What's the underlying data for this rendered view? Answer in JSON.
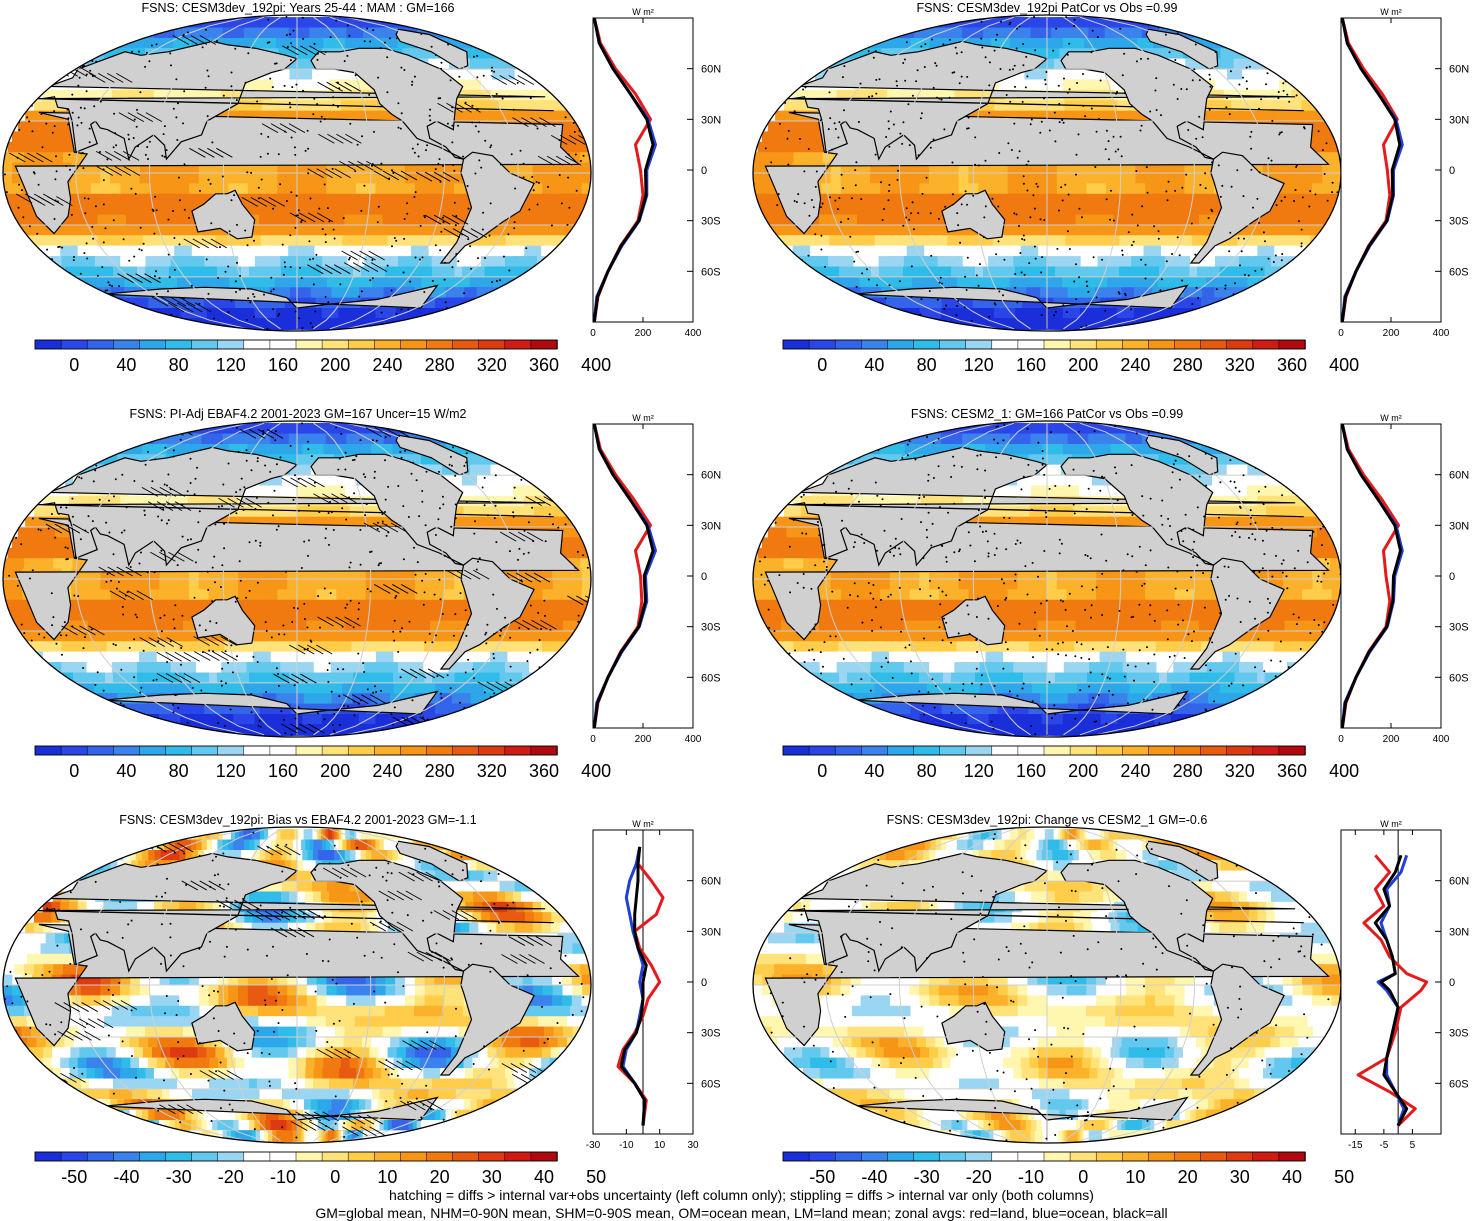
{
  "panels": [
    {
      "id": "p1",
      "title": "FSNS: CESM3dev_192pi: Years 25-44 : MAM : GM=166",
      "kind": "abs",
      "hatch": true
    },
    {
      "id": "p2",
      "title": "FSNS: CESM3dev_192pi PatCor vs Obs =0.99",
      "kind": "abs",
      "hatch": false
    },
    {
      "id": "p3",
      "title": "FSNS: PI-Adj EBAF4.2 2001-2023 GM=167 Uncer=15 W/m2",
      "kind": "abs",
      "hatch": true
    },
    {
      "id": "p4",
      "title": "FSNS: CESM2_1: GM=166 PatCor vs Obs =0.99",
      "kind": "abs",
      "hatch": false
    },
    {
      "id": "p5",
      "title": "FSNS: CESM3dev_192pi: Bias vs EBAF4.2 2001-2023 GM=-1.1",
      "kind": "diff",
      "hatch": true
    },
    {
      "id": "p6",
      "title": "FSNS: CESM3dev_192pi: Change vs CESM2_1 GM=-0.6",
      "kind": "diff",
      "hatch": false
    }
  ],
  "chart_data": [
    {
      "type": "heatmap",
      "title": "FSNS: CESM3dev_192pi: Years 25-44 : MAM : GM=166",
      "colorbar_ticks": [
        "0",
        "40",
        "80",
        "120",
        "160",
        "200",
        "240",
        "280",
        "320",
        "360",
        "400"
      ],
      "colorbar_range": [
        0,
        400
      ],
      "zonal_profile": {
        "unit": "W m²",
        "xticks": [
          "0",
          "200",
          "400"
        ],
        "xlim": [
          0,
          400
        ],
        "yticks": [
          "60N",
          "30N",
          "0",
          "30S",
          "60S"
        ],
        "ylim": [
          -90,
          90
        ],
        "series": [
          {
            "color": "#e41a1c",
            "lat": [
              -90,
              -75,
              -60,
              -45,
              -30,
              -15,
              0,
              15,
              30,
              45,
              60,
              75,
              90
            ],
            "values": [
              5,
              20,
              60,
              110,
              180,
              200,
              190,
              170,
              230,
              170,
              90,
              30,
              5
            ]
          },
          {
            "color": "#1f3fd6",
            "lat": [
              -90,
              -75,
              -60,
              -45,
              -30,
              -15,
              0,
              15,
              30,
              45,
              60,
              75,
              90
            ],
            "values": [
              5,
              15,
              60,
              115,
              185,
              215,
              215,
              250,
              220,
              150,
              80,
              25,
              5
            ]
          },
          {
            "color": "#000000",
            "lat": [
              -90,
              -75,
              -60,
              -45,
              -30,
              -15,
              0,
              15,
              30,
              45,
              60,
              75,
              90
            ],
            "values": [
              5,
              18,
              60,
              112,
              183,
              212,
              210,
              240,
              215,
              150,
              80,
              25,
              5
            ]
          }
        ]
      }
    },
    {
      "type": "heatmap",
      "title": "FSNS: CESM3dev_192pi PatCor vs Obs =0.99",
      "colorbar_ticks": [
        "0",
        "40",
        "80",
        "120",
        "160",
        "200",
        "240",
        "280",
        "320",
        "360",
        "400"
      ],
      "colorbar_range": [
        0,
        400
      ],
      "zonal_profile": {
        "unit": "W m²",
        "xticks": [
          "0",
          "200",
          "400"
        ],
        "xlim": [
          0,
          400
        ],
        "yticks": [
          "60N",
          "30N",
          "0",
          "30S",
          "60S"
        ],
        "ylim": [
          -90,
          90
        ],
        "series": [
          {
            "color": "#e41a1c",
            "lat": [
              -90,
              -75,
              -60,
              -45,
              -30,
              -15,
              0,
              15,
              30,
              45,
              60,
              75,
              90
            ],
            "values": [
              5,
              20,
              60,
              110,
              180,
              195,
              185,
              170,
              225,
              165,
              90,
              30,
              5
            ]
          },
          {
            "color": "#1f3fd6",
            "lat": [
              -90,
              -75,
              -60,
              -45,
              -30,
              -15,
              0,
              15,
              30,
              45,
              60,
              75,
              90
            ],
            "values": [
              5,
              15,
              60,
              115,
              185,
              210,
              210,
              245,
              220,
              150,
              80,
              25,
              5
            ]
          },
          {
            "color": "#000000",
            "lat": [
              -90,
              -75,
              -60,
              -45,
              -30,
              -15,
              0,
              15,
              30,
              45,
              60,
              75,
              90
            ],
            "values": [
              5,
              18,
              60,
              112,
              183,
              207,
              205,
              235,
              215,
              150,
              80,
              25,
              5
            ]
          }
        ]
      }
    },
    {
      "type": "heatmap",
      "title": "FSNS: PI-Adj EBAF4.2 2001-2023 GM=167 Uncer=15 W/m2",
      "colorbar_ticks": [
        "0",
        "40",
        "80",
        "120",
        "160",
        "200",
        "240",
        "280",
        "320",
        "360",
        "400"
      ],
      "colorbar_range": [
        0,
        400
      ],
      "zonal_profile": {
        "unit": "W m²",
        "xticks": [
          "0",
          "200",
          "400"
        ],
        "xlim": [
          0,
          400
        ],
        "yticks": [
          "60N",
          "30N",
          "0",
          "30S",
          "60S"
        ],
        "ylim": [
          -90,
          90
        ],
        "series": [
          {
            "color": "#e41a1c",
            "lat": [
              -90,
              -75,
              -60,
              -45,
              -30,
              -15,
              0,
              15,
              30,
              45,
              60,
              75,
              90
            ],
            "values": [
              5,
              20,
              60,
              110,
              180,
              195,
              190,
              170,
              230,
              165,
              90,
              30,
              5
            ]
          },
          {
            "color": "#1f3fd6",
            "lat": [
              -90,
              -75,
              -60,
              -45,
              -30,
              -15,
              0,
              15,
              30,
              45,
              60,
              75,
              90
            ],
            "values": [
              5,
              15,
              60,
              115,
              185,
              215,
              210,
              250,
              220,
              150,
              80,
              25,
              5
            ]
          },
          {
            "color": "#000000",
            "lat": [
              -90,
              -75,
              -60,
              -45,
              -30,
              -15,
              0,
              15,
              30,
              45,
              60,
              75,
              90
            ],
            "values": [
              5,
              18,
              60,
              112,
              183,
              210,
              205,
              240,
              215,
              150,
              80,
              25,
              5
            ]
          }
        ]
      }
    },
    {
      "type": "heatmap",
      "title": "FSNS: CESM2_1: GM=166 PatCor vs Obs =0.99",
      "colorbar_ticks": [
        "0",
        "40",
        "80",
        "120",
        "160",
        "200",
        "240",
        "280",
        "320",
        "360",
        "400"
      ],
      "colorbar_range": [
        0,
        400
      ],
      "zonal_profile": {
        "unit": "W m²",
        "xticks": [
          "0",
          "200",
          "400"
        ],
        "xlim": [
          0,
          400
        ],
        "yticks": [
          "60N",
          "30N",
          "0",
          "30S",
          "60S"
        ],
        "ylim": [
          -90,
          90
        ],
        "series": [
          {
            "color": "#e41a1c",
            "lat": [
              -90,
              -75,
              -60,
              -45,
              -30,
              -15,
              0,
              15,
              30,
              45,
              60,
              75,
              90
            ],
            "values": [
              5,
              20,
              60,
              110,
              180,
              195,
              180,
              170,
              230,
              165,
              90,
              30,
              5
            ]
          },
          {
            "color": "#1f3fd6",
            "lat": [
              -90,
              -75,
              -60,
              -45,
              -30,
              -15,
              0,
              15,
              30,
              45,
              60,
              75,
              90
            ],
            "values": [
              5,
              15,
              60,
              115,
              185,
              210,
              215,
              245,
              220,
              150,
              80,
              25,
              5
            ]
          },
          {
            "color": "#000000",
            "lat": [
              -90,
              -75,
              -60,
              -45,
              -30,
              -15,
              0,
              15,
              30,
              45,
              60,
              75,
              90
            ],
            "values": [
              5,
              18,
              60,
              112,
              183,
              207,
              210,
              238,
              215,
              150,
              80,
              25,
              5
            ]
          }
        ]
      }
    },
    {
      "type": "heatmap",
      "title": "FSNS: CESM3dev_192pi: Bias vs EBAF4.2 2001-2023 GM=-1.1",
      "colorbar_ticks": [
        "-50",
        "-40",
        "-30",
        "-20",
        "-10",
        "0",
        "10",
        "20",
        "30",
        "40",
        "50"
      ],
      "colorbar_range": [
        -55,
        55
      ],
      "zonal_profile": {
        "unit": "W m²",
        "xticks": [
          "-30",
          "-10",
          "10",
          "30"
        ],
        "xlim": [
          -30,
          30
        ],
        "yticks": [
          "60N",
          "30N",
          "0",
          "30S",
          "60S"
        ],
        "ylim": [
          -90,
          90
        ],
        "series": [
          {
            "color": "#e41a1c",
            "lat": [
              -85,
              -70,
              -60,
              -50,
              -40,
              -30,
              -20,
              -10,
              0,
              10,
              20,
              30,
              40,
              50,
              60,
              70,
              80
            ],
            "values": [
              0,
              2,
              -5,
              -15,
              -12,
              -5,
              0,
              3,
              10,
              5,
              -2,
              -5,
              8,
              12,
              5,
              -3,
              -2
            ]
          },
          {
            "color": "#1f3fd6",
            "lat": [
              -85,
              -70,
              -60,
              -50,
              -40,
              -30,
              -20,
              -10,
              0,
              10,
              20,
              30,
              40,
              50,
              60,
              70,
              80
            ],
            "values": [
              0,
              1,
              -5,
              -12,
              -10,
              -4,
              -2,
              0,
              -2,
              0,
              -3,
              -6,
              -8,
              -10,
              -8,
              -4,
              -2
            ]
          },
          {
            "color": "#000000",
            "lat": [
              -85,
              -70,
              -60,
              -50,
              -40,
              -30,
              -20,
              -10,
              0,
              10,
              20,
              30,
              40,
              50,
              60,
              70,
              80
            ],
            "values": [
              0,
              1,
              -5,
              -13,
              -11,
              -4,
              -1,
              0,
              0,
              2,
              -3,
              -5,
              -5,
              -4,
              -3,
              -3,
              -2
            ]
          }
        ]
      }
    },
    {
      "type": "heatmap",
      "title": "FSNS: CESM3dev_192pi: Change vs CESM2_1 GM=-0.6",
      "colorbar_ticks": [
        "-50",
        "-40",
        "-30",
        "-20",
        "-10",
        "0",
        "10",
        "20",
        "30",
        "40",
        "50"
      ],
      "colorbar_range": [
        -55,
        55
      ],
      "zonal_profile": {
        "unit": "W m²",
        "xticks": [
          "-15",
          "-5",
          "5"
        ],
        "xlim": [
          -20,
          15
        ],
        "yticks": [
          "60N",
          "30N",
          "0",
          "30S",
          "60S"
        ],
        "ylim": [
          -90,
          90
        ],
        "series": [
          {
            "color": "#e41a1c",
            "lat": [
              -85,
              -75,
              -65,
              -55,
              -45,
              -30,
              -15,
              -5,
              0,
              5,
              15,
              25,
              35,
              45,
              55,
              65,
              75
            ],
            "values": [
              0,
              6,
              -3,
              -14,
              -4,
              -1,
              1,
              8,
              10,
              3,
              -3,
              -6,
              -12,
              -5,
              -8,
              -3,
              -8
            ]
          },
          {
            "color": "#1f3fd6",
            "lat": [
              -85,
              -75,
              -65,
              -55,
              -45,
              -30,
              -15,
              -5,
              0,
              5,
              15,
              25,
              35,
              45,
              55,
              65,
              75
            ],
            "values": [
              0,
              2,
              -1,
              -4,
              -4,
              -2,
              0,
              -4,
              -7,
              -1,
              -2,
              -4,
              -6,
              -3,
              -4,
              1,
              3
            ]
          },
          {
            "color": "#000000",
            "lat": [
              -85,
              -75,
              -65,
              -55,
              -45,
              -30,
              -15,
              -5,
              0,
              5,
              15,
              25,
              35,
              45,
              55,
              65,
              75
            ],
            "values": [
              0,
              3,
              -1,
              -5,
              -4,
              -2,
              0,
              -3,
              -6,
              -1,
              -2,
              -4,
              -8,
              -3,
              -5,
              -1,
              1
            ]
          }
        ]
      }
    }
  ],
  "palette": [
    "#1a2fd9",
    "#2a46e8",
    "#3464ea",
    "#3a82ec",
    "#2da7ea",
    "#30bce8",
    "#63c8ee",
    "#9ad6f2",
    "#ffffff",
    "#ffffff",
    "#fff6b0",
    "#ffe27a",
    "#ffcd4a",
    "#fbb12a",
    "#f79516",
    "#f07a10",
    "#e85a0f",
    "#de3a12",
    "#d01a14",
    "#b00a10"
  ],
  "land_color": "#d0d0d0",
  "footnote": {
    "line1": "hatching = diffs > internal var+obs uncertainty (left column only); stippling = diffs > internal var only (both columns)",
    "line2": "GM=global mean, NHM=0-90N mean, SHM=0-90S mean, OM=ocean mean, LM=land mean; zonal avgs: red=land, blue=ocean, black=all"
  }
}
